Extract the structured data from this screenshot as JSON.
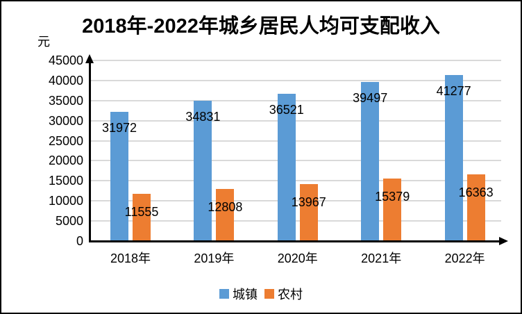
{
  "chart_data": {
    "type": "bar",
    "title": "2018年-2022年城乡居民人均可支配收入",
    "ylabel": "元",
    "categories": [
      "2018年",
      "2019年",
      "2020年",
      "2021年",
      "2022年"
    ],
    "series": [
      {
        "name": "城镇",
        "color": "#5B9BD5",
        "values": [
          31972,
          34831,
          36521,
          39497,
          41277
        ]
      },
      {
        "name": "农村",
        "color": "#ED7D31",
        "values": [
          11555,
          12808,
          13967,
          15379,
          16363
        ]
      }
    ],
    "ylim": [
      0,
      45000
    ],
    "ytick_step": 5000,
    "yticks": [
      0,
      5000,
      10000,
      15000,
      20000,
      25000,
      30000,
      35000,
      40000,
      45000
    ],
    "grid": true,
    "data_labels": true,
    "legend_position": "bottom",
    "axis_color": "#000000",
    "gridline_color": "#D9D9D9",
    "background_color": "#FFFFFF",
    "frame_border_color": "#000000"
  }
}
